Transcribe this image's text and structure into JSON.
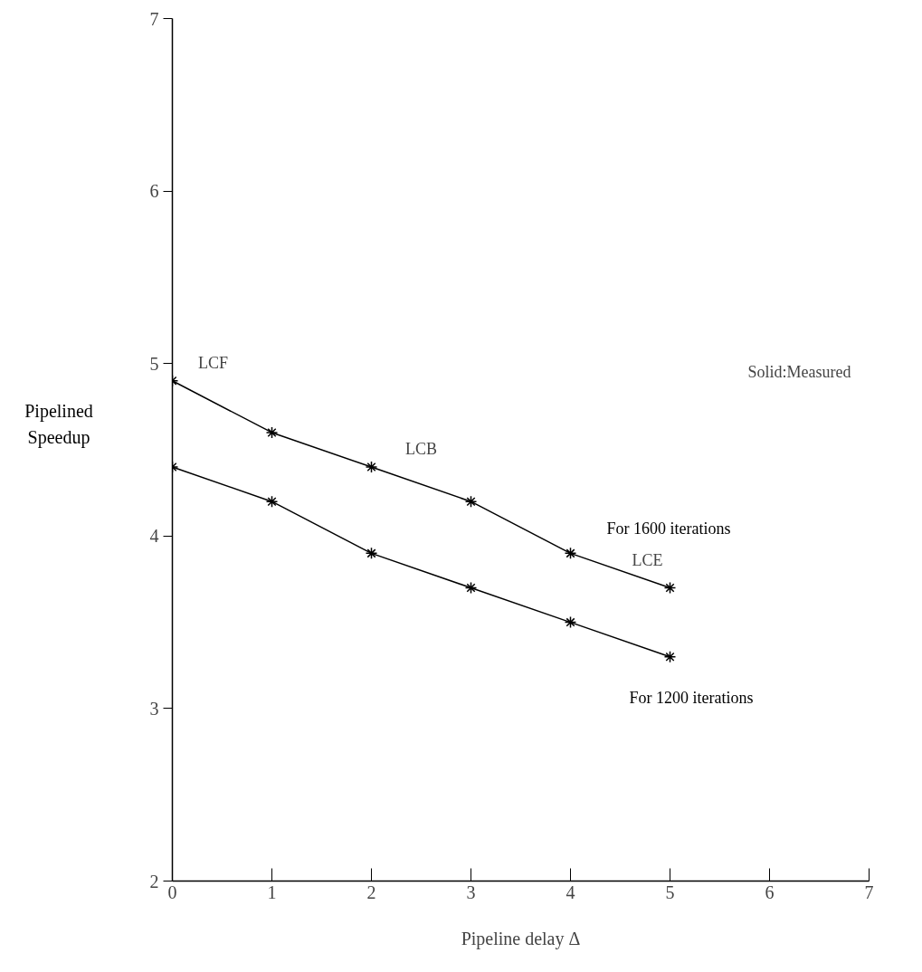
{
  "chart_data": {
    "type": "line",
    "xlabel": "Pipeline delay Δ",
    "ylabel": "Pipelined Speedup",
    "x": [
      0,
      1,
      2,
      3,
      4,
      5
    ],
    "series": [
      {
        "name": "For 1600 iterations",
        "color": "#000000",
        "values": [
          4.9,
          4.6,
          4.4,
          4.2,
          3.9,
          3.7
        ]
      },
      {
        "name": "For 1200 iterations",
        "color": "#000000",
        "values": [
          4.4,
          4.2,
          3.9,
          3.7,
          3.5,
          3.3
        ]
      }
    ],
    "annotations": [
      "LCF",
      "LCB",
      "LCE",
      "Solid:Measured"
    ],
    "xlim": [
      0,
      7
    ],
    "ylim": [
      2,
      7
    ],
    "xticks": [
      0,
      1,
      2,
      3,
      4,
      5,
      6,
      7
    ],
    "yticks": [
      2,
      3,
      4,
      5,
      6,
      7
    ],
    "grid": false,
    "marker": "cross",
    "line_style": "solid"
  }
}
